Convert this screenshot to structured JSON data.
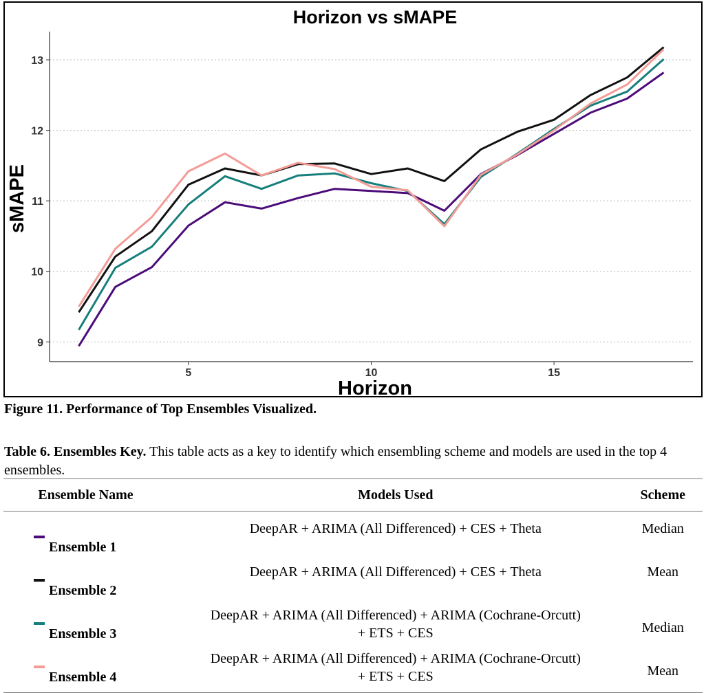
{
  "chart_data": {
    "type": "line",
    "title": "Horizon vs sMAPE",
    "xlabel": "Horizon",
    "ylabel": "sMAPE",
    "x": [
      2,
      3,
      4,
      5,
      6,
      7,
      8,
      9,
      10,
      11,
      12,
      13,
      14,
      15,
      16,
      17,
      18
    ],
    "xticks": [
      5,
      10,
      15
    ],
    "yticks": [
      9,
      10,
      11,
      12,
      13
    ],
    "xlim": [
      1.2,
      18.8
    ],
    "ylim": [
      8.72,
      13.4
    ],
    "grid": "horizontal dotted",
    "series": [
      {
        "name": "Ensemble 1",
        "color": "#4b0c7a",
        "values": [
          8.94,
          9.78,
          10.06,
          10.65,
          10.98,
          10.89,
          11.04,
          11.17,
          11.14,
          11.11,
          10.86,
          11.38,
          11.65,
          11.95,
          12.25,
          12.45,
          12.82
        ]
      },
      {
        "name": "Ensemble 2",
        "color": "#111111",
        "values": [
          9.42,
          10.21,
          10.57,
          11.23,
          11.46,
          11.36,
          11.52,
          11.53,
          11.38,
          11.46,
          11.28,
          11.73,
          11.98,
          12.15,
          12.5,
          12.75,
          13.18
        ]
      },
      {
        "name": "Ensemble 3",
        "color": "#167f7c",
        "values": [
          9.17,
          10.05,
          10.35,
          10.95,
          11.35,
          11.17,
          11.36,
          11.39,
          11.25,
          11.14,
          10.67,
          11.34,
          11.67,
          12.02,
          12.35,
          12.55,
          13.01
        ]
      },
      {
        "name": "Ensemble 4",
        "color": "#f39c97",
        "values": [
          9.5,
          10.32,
          10.77,
          11.42,
          11.67,
          11.36,
          11.54,
          11.45,
          11.2,
          11.15,
          10.64,
          11.37,
          11.66,
          12.0,
          12.38,
          12.65,
          13.15
        ]
      }
    ]
  },
  "figure_caption": "Figure 11. Performance of Top Ensembles Visualized.",
  "table": {
    "caption_label": "Table 6. Ensembles Key.",
    "caption_text": " This table acts as a key to identify which ensembling scheme and models are used in the top 4 ensembles.",
    "headers": [
      "Ensemble Name",
      "Models Used",
      "Scheme"
    ],
    "rows": [
      {
        "name": "Ensemble 1",
        "color": "#4b0c7a",
        "models_line1": "DeepAR + ARIMA (All Differenced) + CES + Theta",
        "models_line2": "",
        "scheme": "Median"
      },
      {
        "name": "Ensemble 2",
        "color": "#111111",
        "models_line1": "DeepAR + ARIMA (All Differenced) + CES + Theta",
        "models_line2": "",
        "scheme": "Mean"
      },
      {
        "name": "Ensemble 3",
        "color": "#167f7c",
        "models_line1": "DeepAR + ARIMA (All Differenced) + ARIMA (Cochrane-Orcutt)",
        "models_line2": "+ ETS + CES",
        "scheme": "Median"
      },
      {
        "name": "Ensemble 4",
        "color": "#f39c97",
        "models_line1": "DeepAR + ARIMA (All Differenced) + ARIMA (Cochrane-Orcutt)",
        "models_line2": "+ ETS + CES",
        "scheme": "Mean"
      }
    ]
  }
}
